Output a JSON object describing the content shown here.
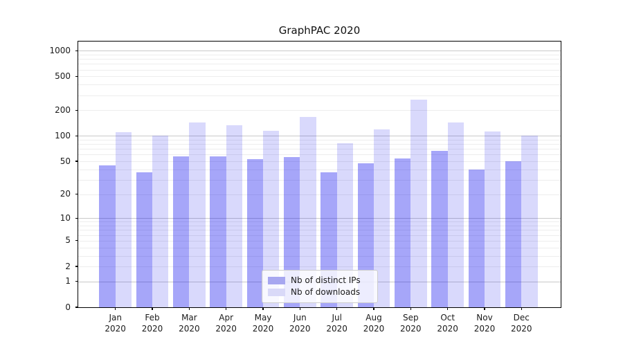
{
  "chart_data": {
    "type": "bar",
    "title": "GraphPAC 2020",
    "categories": [
      "Jan 2020",
      "Feb 2020",
      "Mar 2020",
      "Apr 2020",
      "May 2020",
      "Jun 2020",
      "Jul 2020",
      "Aug 2020",
      "Sep 2020",
      "Oct 2020",
      "Nov 2020",
      "Dec 2020"
    ],
    "series": [
      {
        "name": "Nb of distinct IPs",
        "color": "rgba(0,0,238,0.35)",
        "legend_color": "#a7a7f0",
        "values": [
          45,
          37,
          57,
          57,
          53,
          56,
          37,
          47,
          54,
          66,
          40,
          50
        ]
      },
      {
        "name": "Nb of downloads",
        "color": "rgba(0,0,238,0.15)",
        "legend_color": "#d9d9f8",
        "values": [
          110,
          100,
          144,
          133,
          114,
          166,
          82,
          119,
          265,
          144,
          113,
          100
        ]
      }
    ],
    "xlabel": "",
    "ylabel": "",
    "yscale": "log1p",
    "ylim": [
      0,
      1280
    ],
    "yticks": [
      0,
      1,
      2,
      5,
      10,
      20,
      50,
      100,
      200,
      500,
      1000
    ],
    "major_gridlines": [
      1,
      10,
      100,
      1000
    ],
    "minor_gridlines": [
      2,
      3,
      4,
      5,
      6,
      7,
      8,
      9,
      20,
      30,
      40,
      50,
      60,
      70,
      80,
      90,
      200,
      300,
      400,
      500,
      600,
      700,
      800,
      900
    ],
    "grid": "both",
    "grid_major_color": "#c9c9c9",
    "grid_minor_color": "#ededed",
    "legend_position": "lower center"
  }
}
